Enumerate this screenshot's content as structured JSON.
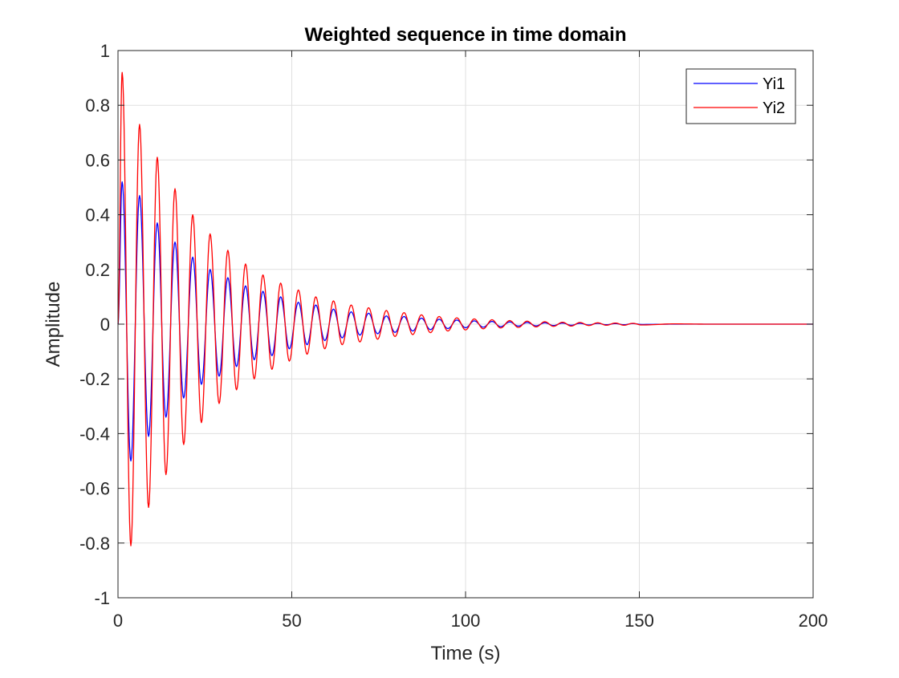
{
  "chart_data": {
    "type": "line",
    "title": "Weighted sequence in time domain",
    "xlabel": "Time (s)",
    "ylabel": "Amplitude",
    "xlim": [
      0,
      200
    ],
    "ylim": [
      -1,
      1
    ],
    "xticks": [
      0,
      50,
      100,
      150,
      200
    ],
    "xtick_labels": [
      "0",
      "50",
      "100",
      "150",
      "200"
    ],
    "yticks": [
      -1,
      -0.8,
      -0.6,
      -0.4,
      -0.2,
      0,
      0.2,
      0.4,
      0.6,
      0.8,
      1
    ],
    "ytick_labels": [
      "-1",
      "-0.8",
      "-0.6",
      "-0.4",
      "-0.2",
      "0",
      "0.2",
      "0.4",
      "0.6",
      "0.8",
      "1"
    ],
    "grid": true,
    "legend_position": "top-right",
    "series": [
      {
        "name": "Yi1",
        "color": "#0000ff",
        "x": [
          0,
          1.2,
          3.7,
          6.2,
          8.8,
          11.3,
          13.8,
          16.4,
          18.9,
          21.5,
          24.0,
          26.5,
          29.1,
          31.6,
          34.1,
          36.7,
          39.2,
          41.7,
          44.3,
          46.8,
          49.3,
          51.9,
          54.4,
          56.9,
          59.5,
          62.0,
          64.5,
          67.1,
          69.6,
          72.1,
          74.7,
          77.2,
          79.7,
          82.3,
          84.8,
          87.3,
          89.9,
          92.4,
          94.9,
          97.5,
          100.0,
          102.5,
          105.1,
          107.6,
          110.1,
          112.7,
          115.2,
          117.7,
          120.3,
          122.8,
          125.3,
          127.9,
          130.4,
          132.9,
          135.5,
          138.0,
          140.5,
          143.1,
          145.6,
          148.1,
          150.7,
          160,
          170,
          180,
          190,
          200
        ],
        "y": [
          0,
          0.52,
          -0.5,
          0.47,
          -0.41,
          0.37,
          -0.34,
          0.3,
          -0.27,
          0.245,
          -0.22,
          0.2,
          -0.19,
          0.17,
          -0.155,
          0.14,
          -0.13,
          0.12,
          -0.115,
          0.1,
          -0.09,
          0.08,
          -0.075,
          0.07,
          -0.06,
          0.055,
          -0.05,
          0.045,
          -0.04,
          0.04,
          -0.035,
          0.03,
          -0.03,
          0.028,
          -0.025,
          0.022,
          -0.02,
          0.018,
          -0.016,
          0.015,
          -0.013,
          0.012,
          -0.011,
          0.01,
          -0.009,
          0.008,
          -0.007,
          0.006,
          -0.006,
          0.005,
          -0.005,
          0.004,
          -0.004,
          0.003,
          -0.003,
          0.003,
          -0.002,
          0.002,
          -0.002,
          0.002,
          -0.001,
          0,
          0,
          0,
          0,
          0
        ]
      },
      {
        "name": "Yi2",
        "color": "#ff0000",
        "x": [
          0,
          1.2,
          3.7,
          6.2,
          8.8,
          11.3,
          13.8,
          16.4,
          18.9,
          21.5,
          24.0,
          26.5,
          29.1,
          31.6,
          34.1,
          36.7,
          39.2,
          41.7,
          44.3,
          46.8,
          49.3,
          51.9,
          54.4,
          56.9,
          59.5,
          62.0,
          64.5,
          67.1,
          69.6,
          72.1,
          74.7,
          77.2,
          79.7,
          82.3,
          84.8,
          87.3,
          89.9,
          92.4,
          94.9,
          97.5,
          100.0,
          102.5,
          105.1,
          107.6,
          110.1,
          112.7,
          115.2,
          117.7,
          120.3,
          122.8,
          125.3,
          127.9,
          130.4,
          132.9,
          135.5,
          138.0,
          140.5,
          143.1,
          145.6,
          148.1,
          150.7,
          160,
          170,
          180,
          190,
          200
        ],
        "y": [
          0,
          0.92,
          -0.81,
          0.73,
          -0.67,
          0.61,
          -0.55,
          0.495,
          -0.44,
          0.4,
          -0.36,
          0.33,
          -0.29,
          0.27,
          -0.24,
          0.22,
          -0.2,
          0.18,
          -0.165,
          0.15,
          -0.135,
          0.125,
          -0.11,
          0.1,
          -0.09,
          0.085,
          -0.075,
          0.07,
          -0.065,
          0.06,
          -0.055,
          0.05,
          -0.045,
          0.042,
          -0.038,
          0.034,
          -0.031,
          0.028,
          -0.025,
          0.023,
          -0.021,
          0.019,
          -0.017,
          0.016,
          -0.014,
          0.013,
          -0.012,
          0.011,
          -0.01,
          0.009,
          -0.008,
          0.007,
          -0.007,
          0.006,
          -0.005,
          0.005,
          -0.004,
          0.004,
          -0.004,
          0.003,
          -0.003,
          0.001,
          0,
          0,
          0,
          0
        ]
      }
    ]
  }
}
